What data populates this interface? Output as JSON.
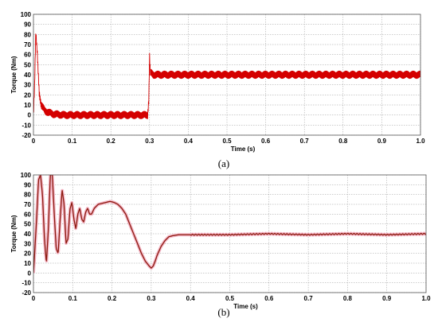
{
  "chart_data": [
    {
      "type": "line",
      "caption": "(a)",
      "xlabel": "Time (s)",
      "ylabel": "Torque (Nm)",
      "xlim": [
        0,
        1.0
      ],
      "ylim": [
        -20,
        100
      ],
      "xticks": [
        "0",
        "0.1",
        "0.2",
        "0.3",
        "0.4",
        "0.5",
        "0.6",
        "0.7",
        "0.8",
        "0.9",
        "1.0"
      ],
      "yticks": [
        "-20",
        "-10",
        "0",
        "10",
        "20",
        "30",
        "40",
        "50",
        "60",
        "70",
        "80",
        "90",
        "100"
      ],
      "grid": true,
      "line_color": "#d40000",
      "series": [
        {
          "x": [
            0,
            0.003,
            0.006,
            0.01,
            0.015,
            0.02,
            0.03,
            0.05,
            0.08,
            0.12,
            0.2,
            0.295,
            0.298,
            0.3,
            0.302,
            0.31,
            0.35,
            0.5,
            0.7,
            1.0
          ],
          "y": [
            0,
            30,
            82,
            60,
            22,
            10,
            4,
            1,
            0,
            0,
            0,
            0,
            15,
            58,
            42,
            40,
            40,
            40,
            40,
            40
          ],
          "band": 4
        }
      ]
    },
    {
      "type": "line",
      "caption": "(b)",
      "xlabel": "Time (s)",
      "ylabel": "Torque (Nm)",
      "xlim": [
        0,
        1.0
      ],
      "ylim": [
        -20,
        100
      ],
      "xticks": [
        "0",
        "0.1",
        "0.2",
        "0.3",
        "0.4",
        "0.5",
        "0.6",
        "0.7",
        "0.8",
        "0.9",
        "1.0"
      ],
      "yticks": [
        "-20",
        "-10",
        "0",
        "10",
        "20",
        "30",
        "40",
        "50",
        "60",
        "70",
        "80",
        "90",
        "100"
      ],
      "grid": true,
      "line_color": "#8b1a0e",
      "series": [
        {
          "x": [
            0,
            0.003,
            0.008,
            0.013,
            0.018,
            0.023,
            0.028,
            0.033,
            0.038,
            0.043,
            0.048,
            0.053,
            0.058,
            0.063,
            0.068,
            0.073,
            0.078,
            0.083,
            0.088,
            0.093,
            0.098,
            0.103,
            0.108,
            0.113,
            0.118,
            0.123,
            0.128,
            0.133,
            0.138,
            0.143,
            0.148,
            0.155,
            0.165,
            0.175,
            0.185,
            0.195,
            0.205,
            0.215,
            0.225,
            0.235,
            0.245,
            0.255,
            0.265,
            0.275,
            0.285,
            0.295,
            0.3,
            0.305,
            0.31,
            0.315,
            0.325,
            0.335,
            0.345,
            0.355,
            0.37,
            0.4,
            0.5,
            0.6,
            0.7,
            0.8,
            0.9,
            1.0
          ],
          "y": [
            0,
            20,
            55,
            95,
            100,
            80,
            35,
            10,
            45,
            100,
            100,
            60,
            25,
            20,
            55,
            85,
            70,
            30,
            35,
            65,
            72,
            55,
            45,
            60,
            66,
            55,
            52,
            62,
            66,
            60,
            60,
            66,
            70,
            71,
            72,
            73,
            72,
            70,
            66,
            60,
            50,
            40,
            30,
            20,
            12,
            7,
            5,
            7,
            12,
            18,
            27,
            33,
            37,
            38,
            39,
            39,
            39,
            40,
            39,
            40,
            39,
            40
          ],
          "band": 1
        }
      ]
    }
  ]
}
